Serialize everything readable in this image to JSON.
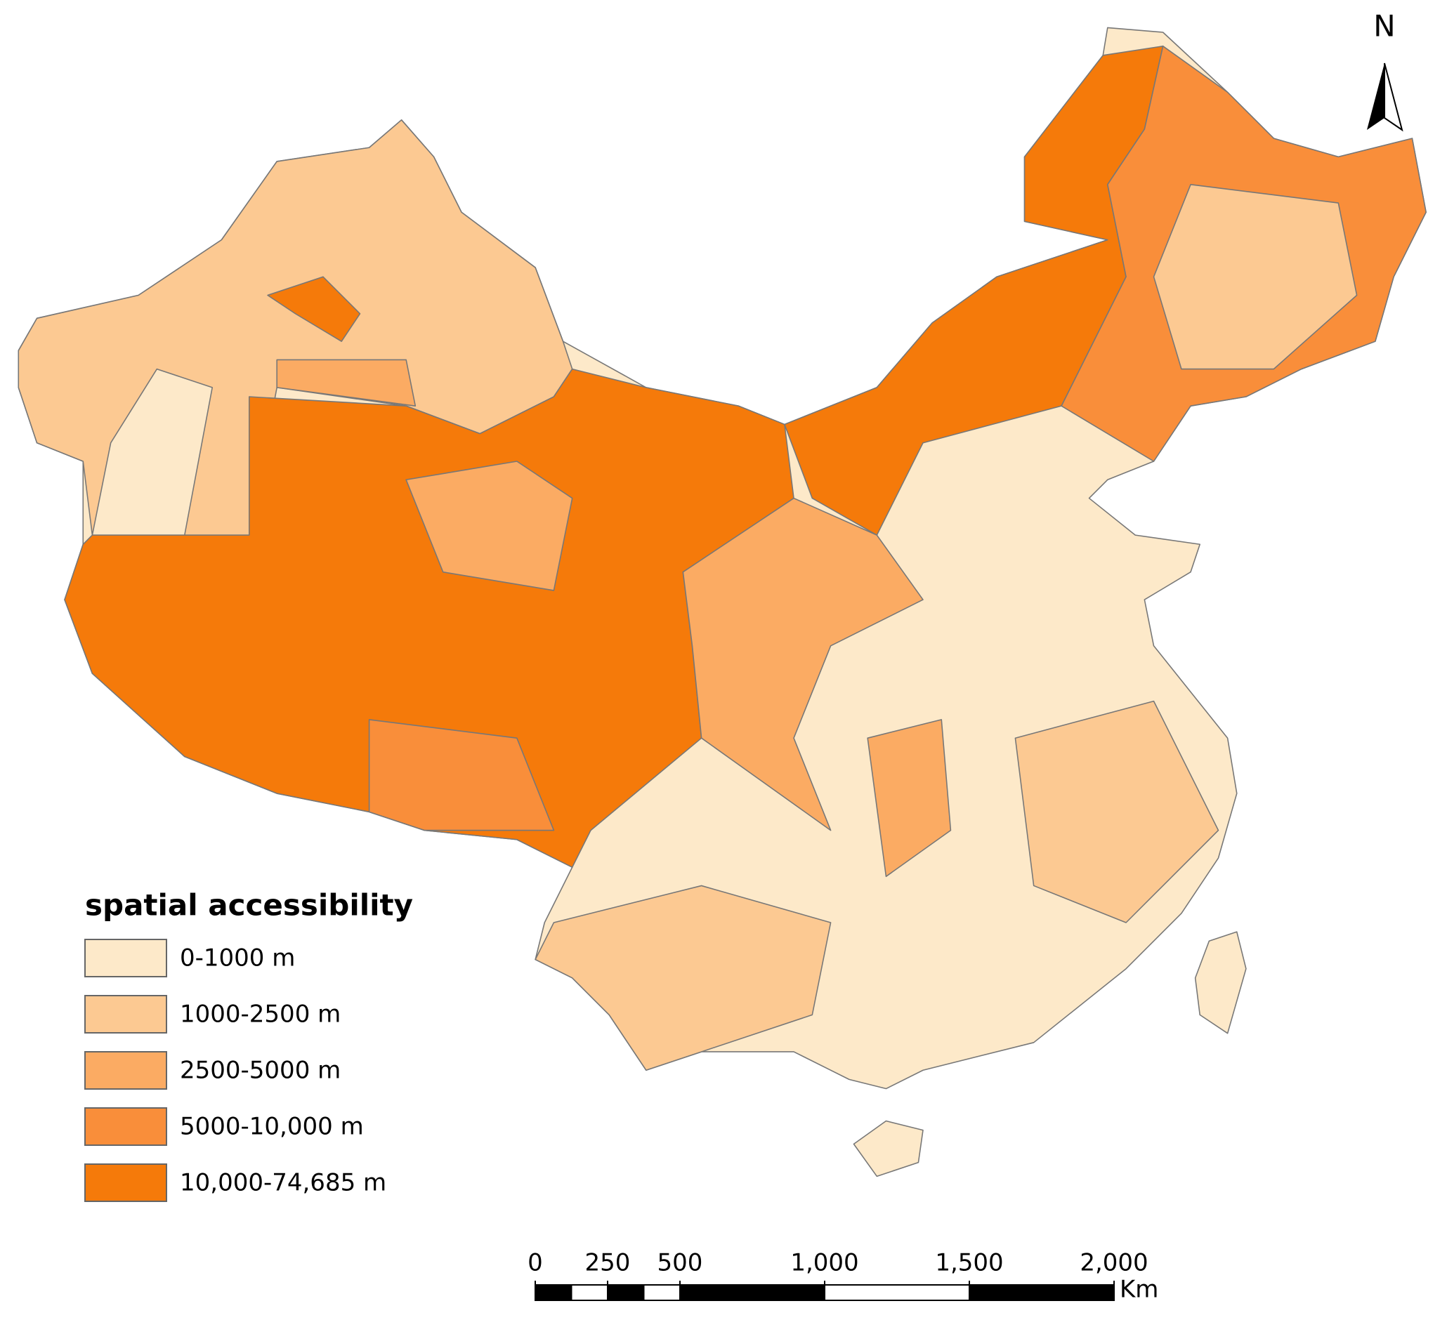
{
  "north_arrow": {
    "label": "N"
  },
  "legend": {
    "title": "spatial accessibility",
    "items": [
      {
        "label": "0-1000 m",
        "color": "#fde9c9"
      },
      {
        "label": "1000-2500 m",
        "color": "#fcc992"
      },
      {
        "label": "2500-5000 m",
        "color": "#fbab63"
      },
      {
        "label": "5000-10,000 m",
        "color": "#f98e3a"
      },
      {
        "label": "10,000-74,685 m",
        "color": "#f57a0a"
      }
    ]
  },
  "scale_bar": {
    "ticks": [
      0,
      250,
      500,
      {
        "value": 1000,
        "label": "1,000"
      },
      {
        "value": 1500,
        "label": "1,500"
      },
      {
        "value": 2000,
        "label": "2,000"
      }
    ],
    "unit": "Km"
  }
}
